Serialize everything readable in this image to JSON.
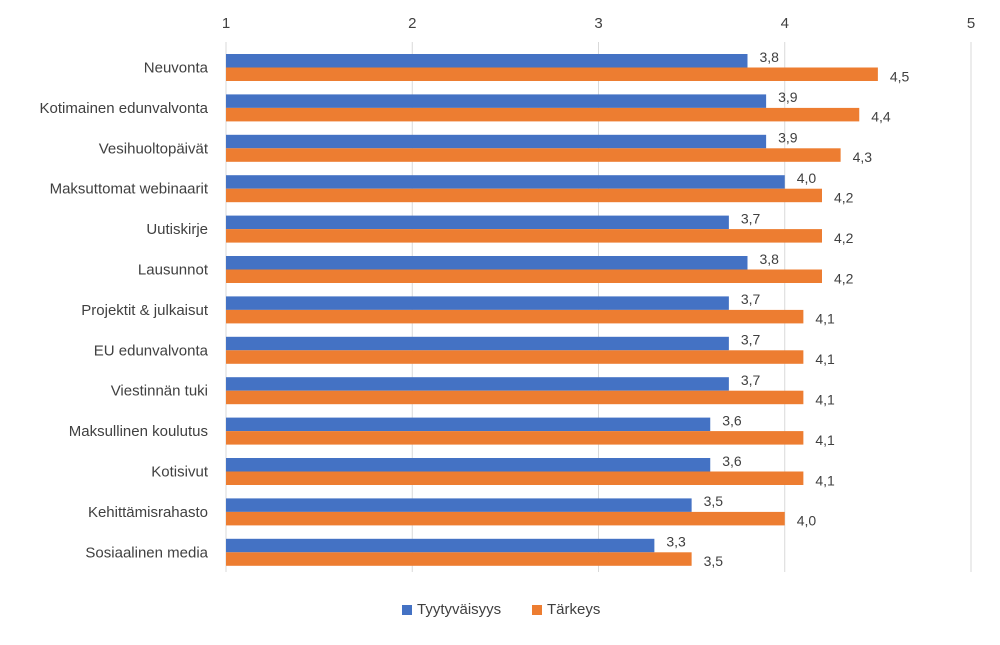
{
  "chart_data": {
    "type": "bar",
    "orientation": "horizontal",
    "categories": [
      "Neuvonta",
      "Kotimainen edunvalvonta",
      "Vesihuoltopäivät",
      "Maksuttomat webinaarit",
      "Uutiskirje",
      "Lausunnot",
      "Projektit & julkaisut",
      "EU edunvalvonta",
      "Viestinnän tuki",
      "Maksullinen koulutus",
      "Kotisivut",
      "Kehittämisrahasto",
      "Sosiaalinen media"
    ],
    "series": [
      {
        "name": "Tyytyväisyys",
        "color": "#4472C4",
        "values": [
          3.8,
          3.9,
          3.9,
          4.0,
          3.7,
          3.8,
          3.7,
          3.7,
          3.7,
          3.6,
          3.6,
          3.5,
          3.3
        ],
        "labels": [
          "3,8",
          "3,9",
          "3,9",
          "4,0",
          "3,7",
          "3,8",
          "3,7",
          "3,7",
          "3,7",
          "3,6",
          "3,6",
          "3,5",
          "3,3"
        ]
      },
      {
        "name": "Tärkeys",
        "color": "#ED7D31",
        "values": [
          4.5,
          4.4,
          4.3,
          4.2,
          4.2,
          4.2,
          4.1,
          4.1,
          4.1,
          4.1,
          4.1,
          4.0,
          3.5
        ],
        "labels": [
          "4,5",
          "4,4",
          "4,3",
          "4,2",
          "4,2",
          "4,2",
          "4,1",
          "4,1",
          "4,1",
          "4,1",
          "4,1",
          "4,0",
          "3,5"
        ]
      }
    ],
    "xlim": [
      1,
      5
    ],
    "xticks": [
      1,
      2,
      3,
      4,
      5
    ],
    "x_axis_position": "top",
    "grid": "vertical",
    "legend": "bottom",
    "title": "",
    "xlabel": "",
    "ylabel": ""
  }
}
